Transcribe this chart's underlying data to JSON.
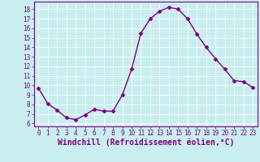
{
  "x": [
    0,
    1,
    2,
    3,
    4,
    5,
    6,
    7,
    8,
    9,
    10,
    11,
    12,
    13,
    14,
    15,
    16,
    17,
    18,
    19,
    20,
    21,
    22,
    23
  ],
  "y": [
    9.7,
    8.1,
    7.4,
    6.6,
    6.4,
    6.9,
    7.5,
    7.3,
    7.3,
    9.0,
    11.7,
    15.5,
    17.0,
    17.8,
    18.2,
    18.0,
    17.0,
    15.4,
    14.0,
    12.8,
    11.7,
    10.5,
    10.4,
    9.8
  ],
  "line_color": "#800080",
  "marker": "D",
  "markersize": 2.5,
  "linewidth": 1.0,
  "xlabel": "Windchill (Refroidissement éolien,°C)",
  "ylabel": "",
  "title": "",
  "xlim": [
    -0.5,
    23.5
  ],
  "ylim": [
    5.7,
    18.8
  ],
  "yticks": [
    6,
    7,
    8,
    9,
    10,
    11,
    12,
    13,
    14,
    15,
    16,
    17,
    18
  ],
  "xticks": [
    0,
    1,
    2,
    3,
    4,
    5,
    6,
    7,
    8,
    9,
    10,
    11,
    12,
    13,
    14,
    15,
    16,
    17,
    18,
    19,
    20,
    21,
    22,
    23
  ],
  "bg_color": "#c8eef0",
  "grid_color": "#ffffff",
  "tick_color": "#800080",
  "xlabel_color": "#800080",
  "tick_fontsize": 5.5,
  "xlabel_fontsize": 7.0,
  "spine_color": "#800080"
}
